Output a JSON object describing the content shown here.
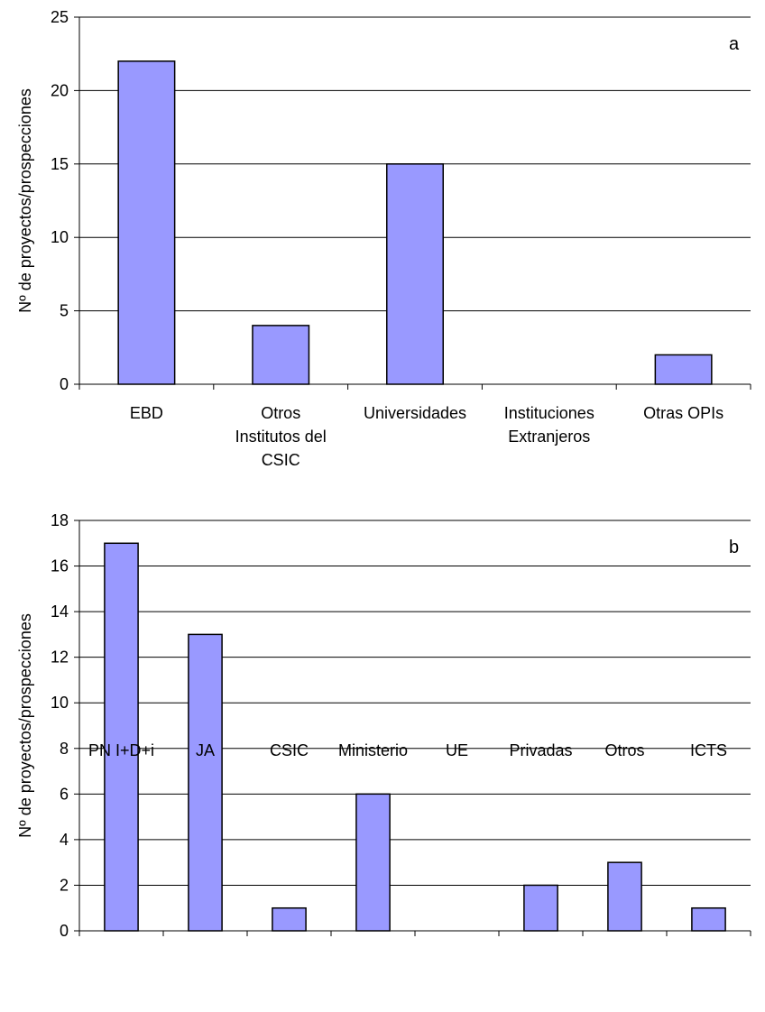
{
  "chart_data": [
    {
      "type": "bar",
      "panel_label": "a",
      "ylabel": "Nº de proyectos/prospecciones",
      "ylim": [
        0,
        25
      ],
      "yticks": [
        0,
        5,
        10,
        15,
        20,
        25
      ],
      "grid": true,
      "bar_color": "#9999ff",
      "categories": [
        [
          "EBD"
        ],
        [
          "Otros",
          "Institutos del",
          "CSIC"
        ],
        [
          "Universidades"
        ],
        [
          "Instituciones",
          "Extranjeros"
        ],
        [
          "Otras OPIs"
        ]
      ],
      "values": [
        22,
        4,
        15,
        0,
        2
      ]
    },
    {
      "type": "bar",
      "panel_label": "b",
      "ylabel": "Nº de proyectos/prospecciones",
      "ylim": [
        0,
        18
      ],
      "yticks": [
        0,
        2,
        4,
        6,
        8,
        10,
        12,
        14,
        16,
        18
      ],
      "grid": true,
      "bar_color": "#9999ff",
      "categories": [
        [
          "PN I+D+i"
        ],
        [
          "JA"
        ],
        [
          "CSIC"
        ],
        [
          "Ministerio"
        ],
        [
          "UE"
        ],
        [
          "Privadas"
        ],
        [
          "Otros"
        ],
        [
          "ICTS"
        ]
      ],
      "values": [
        17,
        13,
        1,
        6,
        0,
        2,
        3,
        1
      ]
    }
  ]
}
